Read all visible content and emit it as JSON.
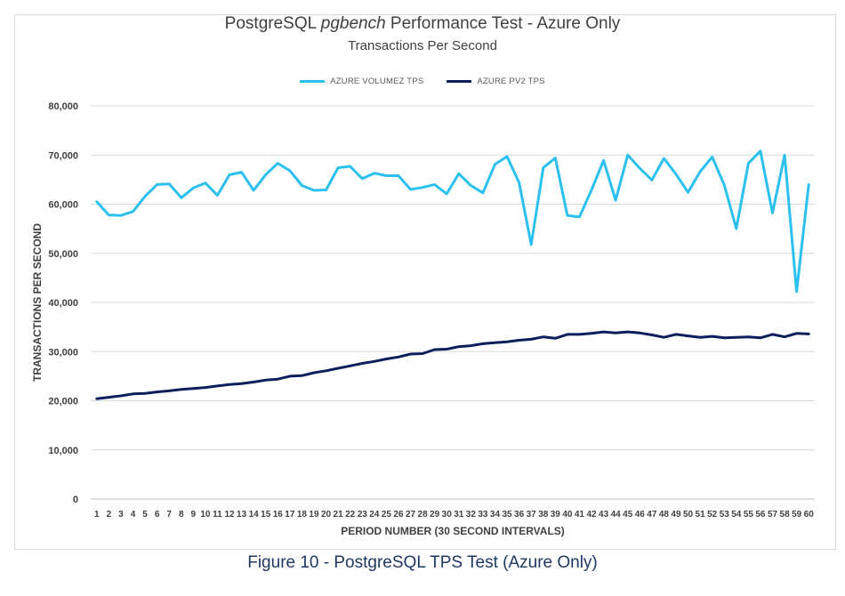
{
  "chart_data": {
    "type": "line",
    "title_prefix": "PostgreSQL ",
    "title_italic": "pgbench",
    "title_suffix": " Performance Test - Azure Only",
    "subtitle": "Transactions Per Second",
    "xlabel": "PERIOD NUMBER (30 SECOND INTERVALS)",
    "ylabel": "TRANSACTIONS PER SECOND",
    "ylim": [
      0,
      80000
    ],
    "yticks": [
      0,
      10000,
      20000,
      30000,
      40000,
      50000,
      60000,
      70000,
      80000
    ],
    "ytick_labels": [
      "0",
      "10,000",
      "20,000",
      "30,000",
      "40,000",
      "50,000",
      "60,000",
      "70,000",
      "80,000"
    ],
    "grid": "horizontal",
    "legend_position": "top-center",
    "x": [
      1,
      2,
      3,
      4,
      5,
      6,
      7,
      8,
      9,
      10,
      11,
      12,
      13,
      14,
      15,
      16,
      17,
      18,
      19,
      20,
      21,
      22,
      23,
      24,
      25,
      26,
      27,
      28,
      29,
      30,
      31,
      32,
      33,
      34,
      35,
      36,
      37,
      38,
      39,
      40,
      41,
      42,
      43,
      44,
      45,
      46,
      47,
      48,
      49,
      50,
      51,
      52,
      53,
      54,
      55,
      56,
      57,
      58,
      59,
      60
    ],
    "series": [
      {
        "name": "AZURE VOLUMEZ TPS",
        "color": "#2cc0ee",
        "values": [
          60500,
          57800,
          57700,
          58500,
          61600,
          64000,
          64100,
          61300,
          63300,
          64300,
          61800,
          66000,
          66500,
          62800,
          66000,
          68300,
          66800,
          63800,
          62800,
          62900,
          67400,
          67700,
          65200,
          66300,
          65800,
          65800,
          63000,
          63400,
          64000,
          62100,
          66200,
          63800,
          62300,
          68100,
          69700,
          64400,
          51800,
          67400,
          69400,
          57700,
          57400,
          62900,
          68900,
          60800,
          70000,
          67300,
          64900,
          69300,
          66100,
          62400,
          66600,
          69600,
          63900,
          55000,
          68300,
          70800,
          58200,
          70000,
          42200,
          64000
        ]
      },
      {
        "name": "AZURE PV2 TPS",
        "color": "#0b1f5c",
        "values": [
          20400,
          20700,
          21000,
          21400,
          21500,
          21800,
          22000,
          22300,
          22500,
          22700,
          23000,
          23300,
          23500,
          23800,
          24200,
          24400,
          25000,
          25100,
          25700,
          26100,
          26600,
          27100,
          27600,
          28000,
          28500,
          28900,
          29500,
          29600,
          30400,
          30500,
          31000,
          31200,
          31600,
          31800,
          32000,
          32300,
          32500,
          33000,
          32700,
          33500,
          33500,
          33700,
          34000,
          33800,
          34000,
          33800,
          33400,
          32900,
          33500,
          33200,
          32900,
          33100,
          32800,
          32900,
          33000,
          32800,
          33500,
          33000,
          33700,
          33600
        ]
      }
    ]
  },
  "caption": "Figure 10 - PostgreSQL TPS Test (Azure Only)"
}
